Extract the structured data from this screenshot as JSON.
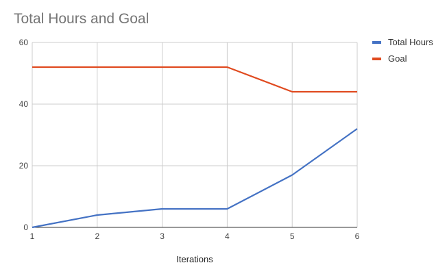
{
  "chart_data": {
    "type": "line",
    "title": "Total Hours and Goal",
    "xlabel": "Iterations",
    "ylabel": "",
    "x": [
      1,
      2,
      3,
      4,
      5,
      6
    ],
    "xlim": [
      1,
      6
    ],
    "ylim": [
      0,
      60
    ],
    "y_ticks": [
      0,
      20,
      40,
      60
    ],
    "grid": true,
    "legend_position": "right",
    "series": [
      {
        "name": "Total Hours",
        "color": "#4472c4",
        "values": [
          0,
          4,
          6,
          6,
          17,
          32
        ]
      },
      {
        "name": "Goal",
        "color": "#e04a1f",
        "values": [
          52,
          52,
          52,
          52,
          44,
          44
        ]
      }
    ]
  }
}
